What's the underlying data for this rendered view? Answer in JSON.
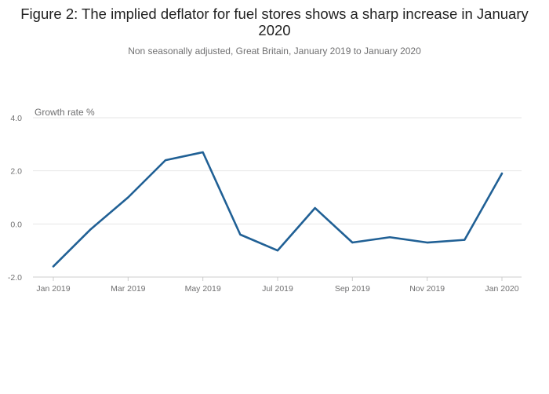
{
  "title": "Figure 2: The implied deflator for fuel stores shows a sharp increase in January 2020",
  "subtitle": "Non seasonally adjusted, Great Britain, January 2019 to January 2020",
  "colors": {
    "series": "#206095",
    "grid": "#e6e6e6",
    "text": "#707071"
  },
  "chart_data": {
    "type": "line",
    "title": "Figure 2: The implied deflator for fuel stores shows a sharp increase in January 2020",
    "subtitle": "Non seasonally adjusted, Great Britain, January 2019 to January 2020",
    "ylabel": "Growth rate %",
    "xlabel": "",
    "ylim": [
      -2.0,
      4.0
    ],
    "y_ticks": [
      "4.0",
      "2.0",
      "0.0",
      "-2.0"
    ],
    "y_tick_values": [
      4,
      2,
      0,
      -2
    ],
    "x": [
      "Jan 2019",
      "Feb 2019",
      "Mar 2019",
      "Apr 2019",
      "May 2019",
      "Jun 2019",
      "Jul 2019",
      "Aug 2019",
      "Sep 2019",
      "Oct 2019",
      "Nov 2019",
      "Dec 2019",
      "Jan 2020"
    ],
    "x_tick_labels": [
      "Jan 2019",
      "Mar 2019",
      "May 2019",
      "Jul 2019",
      "Sep 2019",
      "Nov 2019",
      "Jan 2020"
    ],
    "x_tick_indices": [
      0,
      2,
      4,
      6,
      8,
      10,
      12
    ],
    "series": [
      {
        "values": [
          -1.6,
          -0.2,
          1.0,
          2.4,
          2.7,
          -0.4,
          -1.0,
          0.6,
          -0.7,
          -0.5,
          -0.7,
          -0.6,
          1.9
        ]
      }
    ],
    "grid": true,
    "legend": "none"
  }
}
